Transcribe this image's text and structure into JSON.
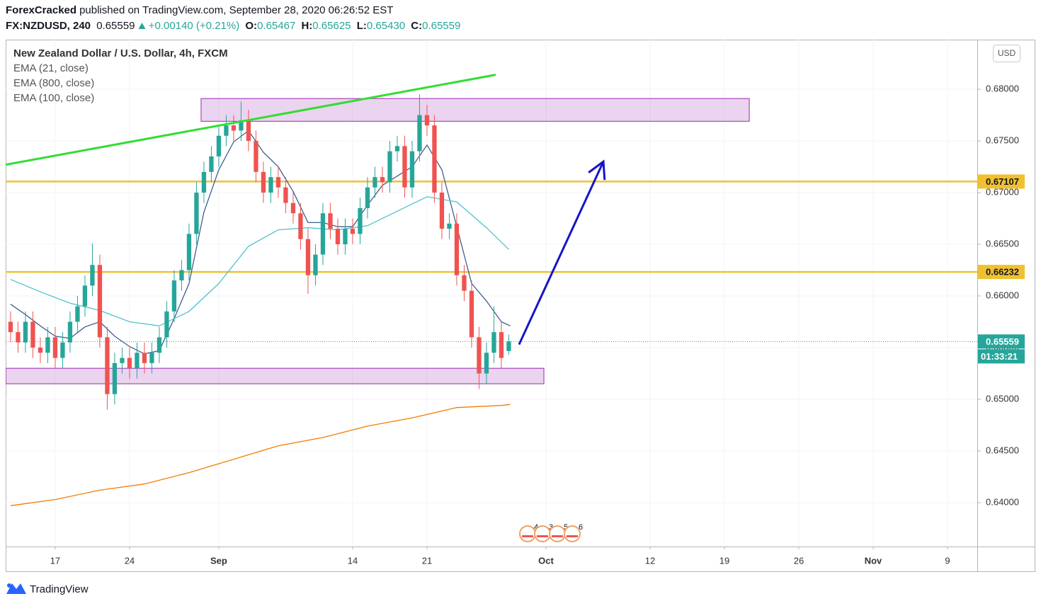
{
  "header": {
    "author": "ForexCracked",
    "published": "published on TradingView.com, September 28, 2020 06:26:52 EST",
    "symbol": "FX:NZDUSD, 240",
    "last": "0.65559",
    "change": "+0.00140 (+0.21%)",
    "ohlc": [
      {
        "label": "O:",
        "value": "0.65467"
      },
      {
        "label": "H:",
        "value": "0.65625"
      },
      {
        "label": "L:",
        "value": "0.65430"
      },
      {
        "label": "C:",
        "value": "0.65559"
      }
    ]
  },
  "chart_data": {
    "type": "candlestick",
    "title": "New Zealand Dollar / U.S. Dollar, 4h, FXCM",
    "currency": "USD",
    "countdown": "01:33:21",
    "events": [
      "4",
      "3",
      "5",
      "6"
    ],
    "up_color": "#26a69a",
    "down_color": "#ef5350",
    "grid": true,
    "xlim": [
      -3.33,
      62
    ],
    "ylim": [
      0.63575,
      0.6848
    ],
    "xticks": [
      {
        "value": 0,
        "label": "17"
      },
      {
        "value": 5,
        "label": "24"
      },
      {
        "value": 11,
        "label": "Sep"
      },
      {
        "value": 20,
        "label": "14"
      },
      {
        "value": 25,
        "label": "21"
      },
      {
        "value": 33,
        "label": "Oct"
      },
      {
        "value": 40,
        "label": "12"
      },
      {
        "value": 45,
        "label": "19"
      },
      {
        "value": 50,
        "label": "26"
      },
      {
        "value": 55,
        "label": "Nov"
      },
      {
        "value": 60,
        "label": "9"
      }
    ],
    "yticks": [
      {
        "value": 0.64,
        "label": "0.64000"
      },
      {
        "value": 0.645,
        "label": "0.64500"
      },
      {
        "value": 0.65,
        "label": "0.65000"
      },
      {
        "value": 0.655,
        "label": "0.65500"
      },
      {
        "value": 0.66,
        "label": "0.66000"
      },
      {
        "value": 0.665,
        "label": "0.66500"
      },
      {
        "value": 0.67,
        "label": "0.67000"
      },
      {
        "value": 0.675,
        "label": "0.67500"
      },
      {
        "value": 0.68,
        "label": "0.68000"
      }
    ],
    "candles": {
      "x": [
        -3,
        -2.5,
        -2,
        -1.5,
        -1,
        -0.5,
        0,
        0.5,
        1,
        1.5,
        2,
        2.5,
        3,
        3.5,
        4,
        4.5,
        5,
        5.5,
        6,
        6.5,
        7,
        7.5,
        8,
        8.5,
        9,
        9.5,
        10,
        10.5,
        11,
        11.5,
        12,
        12.5,
        13,
        13.5,
        14,
        14.5,
        15,
        15.5,
        16,
        16.5,
        17,
        17.5,
        18,
        18.5,
        19,
        19.5,
        20,
        20.5,
        21,
        21.5,
        22,
        22.5,
        23,
        23.5,
        24,
        24.5,
        25,
        25.5,
        26,
        26.5,
        27,
        27.5,
        28,
        28.5,
        29,
        29.5,
        30,
        30.5
      ],
      "open": [
        0.6575,
        0.6565,
        0.6555,
        0.6575,
        0.655,
        0.6545,
        0.656,
        0.654,
        0.6555,
        0.6575,
        0.659,
        0.661,
        0.663,
        0.656,
        0.6505,
        0.6535,
        0.654,
        0.653,
        0.6545,
        0.6535,
        0.6545,
        0.656,
        0.6585,
        0.6615,
        0.6625,
        0.666,
        0.67,
        0.672,
        0.6735,
        0.6755,
        0.6765,
        0.676,
        0.677,
        0.675,
        0.672,
        0.67,
        0.6715,
        0.6705,
        0.669,
        0.668,
        0.6655,
        0.662,
        0.664,
        0.668,
        0.6665,
        0.665,
        0.6665,
        0.666,
        0.6685,
        0.6705,
        0.6715,
        0.671,
        0.674,
        0.6745,
        0.6705,
        0.674,
        0.6775,
        0.6765,
        0.67,
        0.6665,
        0.667,
        0.662,
        0.6605,
        0.656,
        0.6525,
        0.6545,
        0.6565,
        0.65467
      ],
      "high": [
        0.6585,
        0.6575,
        0.6585,
        0.6585,
        0.656,
        0.657,
        0.657,
        0.6565,
        0.6585,
        0.66,
        0.662,
        0.6651,
        0.664,
        0.657,
        0.6545,
        0.655,
        0.655,
        0.6555,
        0.6555,
        0.6555,
        0.657,
        0.6595,
        0.6625,
        0.6635,
        0.667,
        0.671,
        0.673,
        0.6745,
        0.6765,
        0.6775,
        0.6775,
        0.6788,
        0.678,
        0.676,
        0.673,
        0.6725,
        0.6725,
        0.6715,
        0.67,
        0.669,
        0.6665,
        0.665,
        0.669,
        0.669,
        0.6675,
        0.6675,
        0.6675,
        0.6695,
        0.6715,
        0.6725,
        0.6725,
        0.675,
        0.6755,
        0.6755,
        0.675,
        0.6795,
        0.6785,
        0.6775,
        0.671,
        0.668,
        0.668,
        0.663,
        0.6615,
        0.657,
        0.6555,
        0.659,
        0.6575,
        0.65625
      ],
      "low": [
        0.6555,
        0.6545,
        0.6545,
        0.654,
        0.6535,
        0.6535,
        0.653,
        0.653,
        0.6545,
        0.6565,
        0.658,
        0.66,
        0.655,
        0.649,
        0.6495,
        0.6525,
        0.652,
        0.652,
        0.6525,
        0.6525,
        0.6535,
        0.655,
        0.6575,
        0.6605,
        0.6615,
        0.665,
        0.669,
        0.671,
        0.6725,
        0.6745,
        0.675,
        0.675,
        0.674,
        0.671,
        0.669,
        0.669,
        0.6695,
        0.668,
        0.667,
        0.6645,
        0.6602,
        0.661,
        0.663,
        0.6655,
        0.664,
        0.664,
        0.665,
        0.665,
        0.6675,
        0.6695,
        0.67,
        0.67,
        0.673,
        0.6695,
        0.6695,
        0.673,
        0.6755,
        0.669,
        0.6655,
        0.6655,
        0.661,
        0.6595,
        0.655,
        0.651,
        0.6515,
        0.6535,
        0.653,
        0.6543
      ],
      "close": [
        0.6565,
        0.6555,
        0.6575,
        0.655,
        0.6545,
        0.656,
        0.654,
        0.6555,
        0.6575,
        0.659,
        0.661,
        0.663,
        0.656,
        0.6505,
        0.6535,
        0.654,
        0.653,
        0.6545,
        0.6535,
        0.6545,
        0.656,
        0.6585,
        0.6615,
        0.6625,
        0.666,
        0.67,
        0.672,
        0.6735,
        0.6755,
        0.6765,
        0.676,
        0.677,
        0.675,
        0.672,
        0.67,
        0.6715,
        0.6705,
        0.669,
        0.668,
        0.6655,
        0.662,
        0.664,
        0.668,
        0.6665,
        0.665,
        0.6665,
        0.666,
        0.6685,
        0.6705,
        0.6715,
        0.671,
        0.674,
        0.6745,
        0.6705,
        0.674,
        0.6775,
        0.6765,
        0.67,
        0.6665,
        0.667,
        0.662,
        0.6605,
        0.656,
        0.6525,
        0.6545,
        0.6565,
        0.654,
        0.65559
      ]
    },
    "series": [
      {
        "name": "EMA (21, close)",
        "color": "#3f5f8f",
        "x": [
          -3,
          -2,
          -1,
          0,
          1,
          2,
          3,
          4,
          5,
          6,
          7,
          8,
          9,
          10,
          11,
          12,
          13,
          14,
          15,
          16,
          17,
          18,
          19,
          20,
          21,
          22,
          23,
          24,
          25,
          26,
          27,
          28,
          29,
          30,
          30.6
        ],
        "values": [
          0.6592,
          0.6582,
          0.6571,
          0.6561,
          0.6559,
          0.657,
          0.6575,
          0.6561,
          0.6551,
          0.6544,
          0.6547,
          0.6578,
          0.6612,
          0.6681,
          0.6722,
          0.6749,
          0.676,
          0.6739,
          0.6725,
          0.6701,
          0.6671,
          0.6671,
          0.6667,
          0.6667,
          0.6688,
          0.6707,
          0.6716,
          0.6725,
          0.6746,
          0.6722,
          0.6667,
          0.6612,
          0.6595,
          0.6575,
          0.6571
        ]
      },
      {
        "name": "EMA (800, close)",
        "color": "#f57c00",
        "x": [
          -3,
          0,
          3,
          6,
          9,
          12,
          15,
          18,
          21,
          24,
          27,
          30,
          30.6
        ],
        "values": [
          0.6397,
          0.6403,
          0.6412,
          0.6418,
          0.6429,
          0.6442,
          0.6455,
          0.6463,
          0.6474,
          0.6482,
          0.6492,
          0.6494,
          0.6495
        ]
      },
      {
        "name": "EMA (100, close)",
        "color": "#4ec3cc",
        "x": [
          -3,
          -1,
          1,
          3,
          5,
          7,
          9,
          11,
          13,
          15,
          17,
          19,
          21,
          23,
          25,
          27,
          29,
          30.5
        ],
        "values": [
          0.6616,
          0.6604,
          0.6593,
          0.6586,
          0.6575,
          0.6571,
          0.6585,
          0.6612,
          0.6648,
          0.6664,
          0.6666,
          0.6664,
          0.6668,
          0.6682,
          0.6696,
          0.6691,
          0.6666,
          0.6645
        ]
      }
    ],
    "levels": [
      {
        "value": 0.67107,
        "color": "#f0c030"
      },
      {
        "value": 0.66232,
        "color": "#f0c030"
      }
    ],
    "last_price": {
      "value": 0.65559,
      "color": "#26a69a"
    },
    "zones": [
      {
        "x": [
          9.81,
          46.67
        ],
        "y": [
          0.6769,
          0.6791
        ],
        "color": "#9c27b0"
      },
      {
        "x": [
          -3.33,
          32.86
        ],
        "y": [
          0.6515,
          0.653
        ],
        "color": "#9c27b0"
      }
    ],
    "trendlines": [
      {
        "x": [
          -3.33,
          29.62
        ],
        "y": [
          0.6727,
          0.6814
        ],
        "color": "#33dd33"
      }
    ],
    "arrows": [
      {
        "x": [
          31.19,
          36.86
        ],
        "y": [
          0.6553,
          0.673
        ],
        "color": "#1515c8"
      }
    ]
  },
  "footer": {
    "brand": "TradingView"
  }
}
